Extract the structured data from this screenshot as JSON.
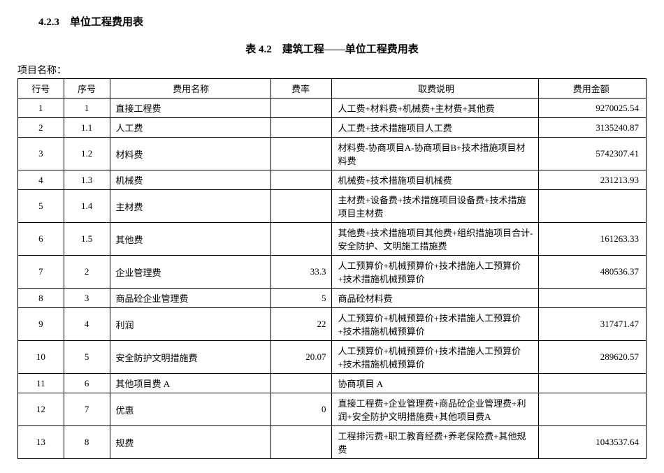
{
  "section_title": "4.2.3　单位工程费用表",
  "table_caption": "表 4.2　建筑工程——单位工程费用表",
  "project_name_label": "项目名称：",
  "columns": {
    "row_no": "行号",
    "seq": "序号",
    "name": "费用名称",
    "rate": "费率",
    "desc": "取费说明",
    "amount": "费用金额"
  },
  "rows": [
    {
      "row_no": "1",
      "seq": "1",
      "name": "直接工程费",
      "rate": "",
      "desc": "人工费+材料费+机械费+主材费+其他费",
      "amount": "9270025.54"
    },
    {
      "row_no": "2",
      "seq": "1.1",
      "name": "人工费",
      "rate": "",
      "desc": "人工费+技术措施项目人工费",
      "amount": "3135240.87"
    },
    {
      "row_no": "3",
      "seq": "1.2",
      "name": "材料费",
      "rate": "",
      "desc": "材料费-协商项目A-协商项目B+技术措施项目材料费",
      "amount": "5742307.41"
    },
    {
      "row_no": "4",
      "seq": "1.3",
      "name": "机械费",
      "rate": "",
      "desc": "机械费+技术措施项目机械费",
      "amount": "231213.93"
    },
    {
      "row_no": "5",
      "seq": "1.4",
      "name": "主材费",
      "rate": "",
      "desc": "主材费+设备费+技术措施项目设备费+技术措施项目主材费",
      "amount": ""
    },
    {
      "row_no": "6",
      "seq": "1.5",
      "name": "其他费",
      "rate": "",
      "desc": "其他费+技术措施项目其他费+组织措施项目合计-安全防护、文明施工措施费",
      "amount": "161263.33"
    },
    {
      "row_no": "7",
      "seq": "2",
      "name": "企业管理费",
      "rate": "33.3",
      "desc": "人工预算价+机械预算价+技术措施人工预算价+技术措施机械预算价",
      "amount": "480536.37"
    },
    {
      "row_no": "8",
      "seq": "3",
      "name": "商品砼企业管理费",
      "rate": "5",
      "desc": "商品砼材料费",
      "amount": ""
    },
    {
      "row_no": "9",
      "seq": "4",
      "name": "利润",
      "rate": "22",
      "desc": "人工预算价+机械预算价+技术措施人工预算价+技术措施机械预算价",
      "amount": "317471.47"
    },
    {
      "row_no": "10",
      "seq": "5",
      "name": "安全防护文明措施费",
      "rate": "20.07",
      "desc": "人工预算价+机械预算价+技术措施人工预算价+技术措施机械预算价",
      "amount": "289620.57"
    },
    {
      "row_no": "11",
      "seq": "6",
      "name": "其他项目费 A",
      "rate": "",
      "desc": "协商项目 A",
      "amount": ""
    },
    {
      "row_no": "12",
      "seq": "7",
      "name": "优惠",
      "rate": "0",
      "desc": "直接工程费+企业管理费+商品砼企业管理费+利润+安全防护文明措施费+其他项目费A",
      "amount": ""
    },
    {
      "row_no": "13",
      "seq": "8",
      "name": "规费",
      "rate": "",
      "desc": "工程排污费+职工教育经费+养老保险费+其他规费",
      "amount": "1043537.64"
    }
  ],
  "style": {
    "font_family": "SimSun",
    "border_color": "#000000",
    "background_color": "#ffffff",
    "text_color": "#000000",
    "header_fontsize": 13,
    "body_fontsize": 13
  }
}
